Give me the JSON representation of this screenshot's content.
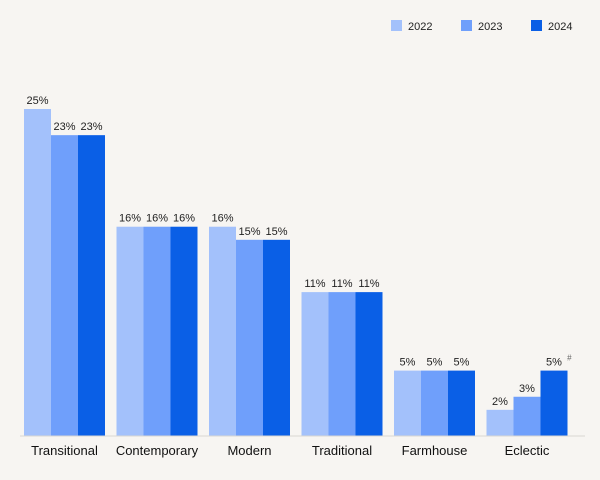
{
  "chart_data": {
    "type": "bar",
    "categories": [
      "Transitional",
      "Contemporary",
      "Modern",
      "Traditional",
      "Farmhouse",
      "Eclectic"
    ],
    "series": [
      {
        "name": "2022",
        "color": "#a3c1fb",
        "values": [
          25,
          16,
          16,
          11,
          5,
          2
        ]
      },
      {
        "name": "2023",
        "color": "#6f9ffb",
        "values": [
          23,
          16,
          15,
          11,
          5,
          3
        ]
      },
      {
        "name": "2024",
        "color": "#0a5fe6",
        "values": [
          23,
          16,
          15,
          11,
          5,
          5
        ]
      }
    ],
    "value_suffix": "%",
    "ylim": [
      0,
      25
    ],
    "grid": false,
    "legend_position": "top-right",
    "annotations": [
      {
        "category": "Eclectic",
        "series": "2024",
        "text": "#"
      }
    ],
    "title": "",
    "xlabel": "",
    "ylabel": ""
  }
}
